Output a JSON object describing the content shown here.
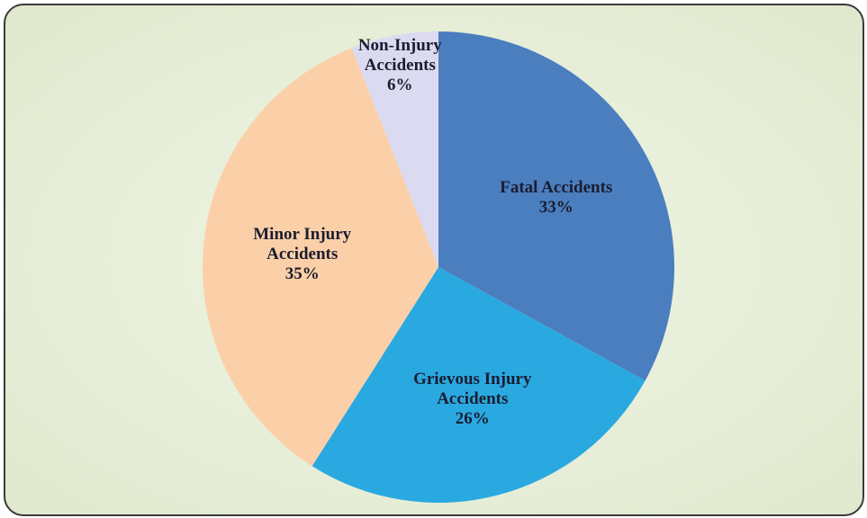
{
  "chart_data": {
    "type": "pie",
    "categories": [
      "Fatal Accidents",
      "Grievous Injury Accidents",
      "Minor Injury Accidents",
      "Non-Injury Accidents"
    ],
    "values": [
      33,
      26,
      35,
      6
    ],
    "value_labels": [
      "33%",
      "26%",
      "35%",
      "6%"
    ],
    "colors": [
      "#4a7ebf",
      "#2aa9e1",
      "#fbd0a8",
      "#dcdaf0"
    ],
    "start_angle": 0,
    "direction": "clockwise"
  }
}
